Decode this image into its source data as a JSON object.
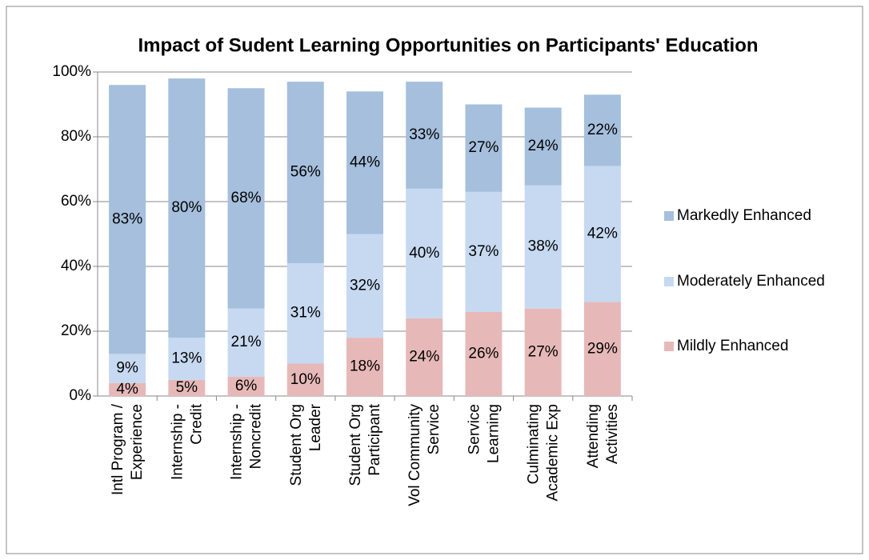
{
  "chart_data": {
    "type": "stacked_bar",
    "title": "Impact of Sudent Learning Opportunities on Participants' Education",
    "categories": [
      [
        "Intl Program /",
        "Experience"
      ],
      [
        "Internship -",
        "Credit"
      ],
      [
        "Internship -",
        "Noncredit"
      ],
      [
        "Student Org",
        "Leader"
      ],
      [
        "Student Org",
        "Participant"
      ],
      [
        "Vol Community",
        "Service"
      ],
      [
        "Service",
        "Learning"
      ],
      [
        "Culminating",
        "Academic Exp"
      ],
      [
        "Attending",
        "Activities"
      ]
    ],
    "series": [
      {
        "name": "Mildly Enhanced",
        "color": "#e6b9b8",
        "values": [
          4,
          5,
          6,
          10,
          18,
          24,
          26,
          27,
          29
        ],
        "value_labels": [
          "4%",
          "5%",
          "6%",
          "10%",
          "18%",
          "24%",
          "26%",
          "27%",
          "29%"
        ]
      },
      {
        "name": "Moderately Enhanced",
        "color": "#c6d9f1",
        "values": [
          9,
          13,
          21,
          31,
          32,
          40,
          37,
          38,
          42
        ],
        "value_labels": [
          "9%",
          "13%",
          "21%",
          "31%",
          "32%",
          "40%",
          "37%",
          "38%",
          "42%"
        ]
      },
      {
        "name": "Markedly Enhanced",
        "color": "#a5bfdd",
        "values": [
          83,
          80,
          68,
          56,
          44,
          33,
          27,
          24,
          22
        ],
        "value_labels": [
          "83%",
          "80%",
          "68%",
          "56%",
          "44%",
          "33%",
          "27%",
          "24%",
          "22%"
        ]
      }
    ],
    "ylim": [
      0,
      100
    ],
    "yticks": [
      {
        "value": 0,
        "label": "0%"
      },
      {
        "value": 20,
        "label": "20%"
      },
      {
        "value": 40,
        "label": "40%"
      },
      {
        "value": 60,
        "label": "60%"
      },
      {
        "value": 80,
        "label": "80%"
      },
      {
        "value": 100,
        "label": "100%"
      }
    ],
    "grid": true,
    "legend": "right"
  }
}
